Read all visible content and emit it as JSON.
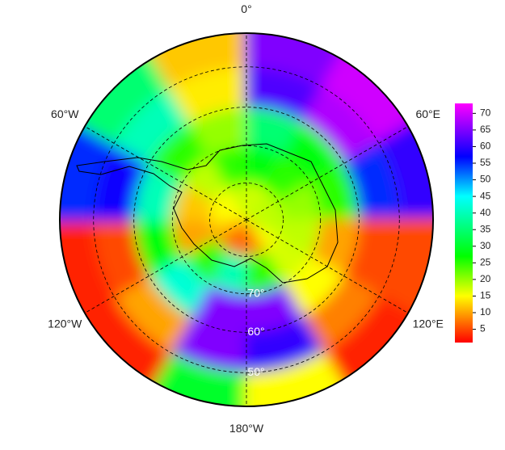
{
  "chart_data": {
    "type": "polar-heatmap",
    "hemisphere": "south",
    "lat_edges": [
      -90,
      -80,
      -70,
      -60,
      -50,
      -42
    ],
    "lon_edges": [
      -180,
      -150,
      -120,
      -90,
      -60,
      -30,
      0,
      30,
      60,
      90,
      120,
      150,
      180
    ],
    "values": [
      [
        6,
        8,
        12,
        15,
        15,
        18,
        17,
        18,
        18,
        18,
        15,
        8
      ],
      [
        40,
        25,
        10,
        12,
        18,
        25,
        28,
        25,
        20,
        18,
        17,
        25
      ],
      [
        65,
        42,
        28,
        40,
        25,
        20,
        35,
        28,
        25,
        10,
        15,
        65
      ],
      [
        65,
        10,
        5,
        58,
        40,
        14,
        62,
        68,
        55,
        5,
        8,
        60
      ],
      [
        30,
        3,
        3,
        55,
        35,
        12,
        65,
        70,
        60,
        5,
        3,
        15
      ]
    ],
    "lat_grid": [
      -80,
      -70,
      -60,
      -50
    ],
    "lon_labels": [
      {
        "value": 0,
        "label": "0°"
      },
      {
        "value": 60,
        "label": "60°E"
      },
      {
        "value": 120,
        "label": "120°E"
      },
      {
        "value": 180,
        "label": "180°W"
      },
      {
        "value": -120,
        "label": "120°W"
      },
      {
        "value": -60,
        "label": "60°W"
      }
    ],
    "lat_labels": [
      {
        "value": -70,
        "label": "70°"
      },
      {
        "value": -60,
        "label": "60°"
      },
      {
        "value": -50,
        "label": "50°"
      }
    ],
    "colormap": [
      {
        "value": 1,
        "color": "#ff0000"
      },
      {
        "value": 15,
        "color": "#ffff00"
      },
      {
        "value": 27,
        "color": "#00ff00"
      },
      {
        "value": 45,
        "color": "#00ffff"
      },
      {
        "value": 57,
        "color": "#0000ff"
      },
      {
        "value": 73,
        "color": "#ff00ff"
      }
    ],
    "colorbar": {
      "lim": [
        1,
        73
      ],
      "ticks": [
        5,
        10,
        15,
        20,
        25,
        30,
        35,
        40,
        45,
        50,
        55,
        60,
        65,
        70
      ]
    }
  }
}
